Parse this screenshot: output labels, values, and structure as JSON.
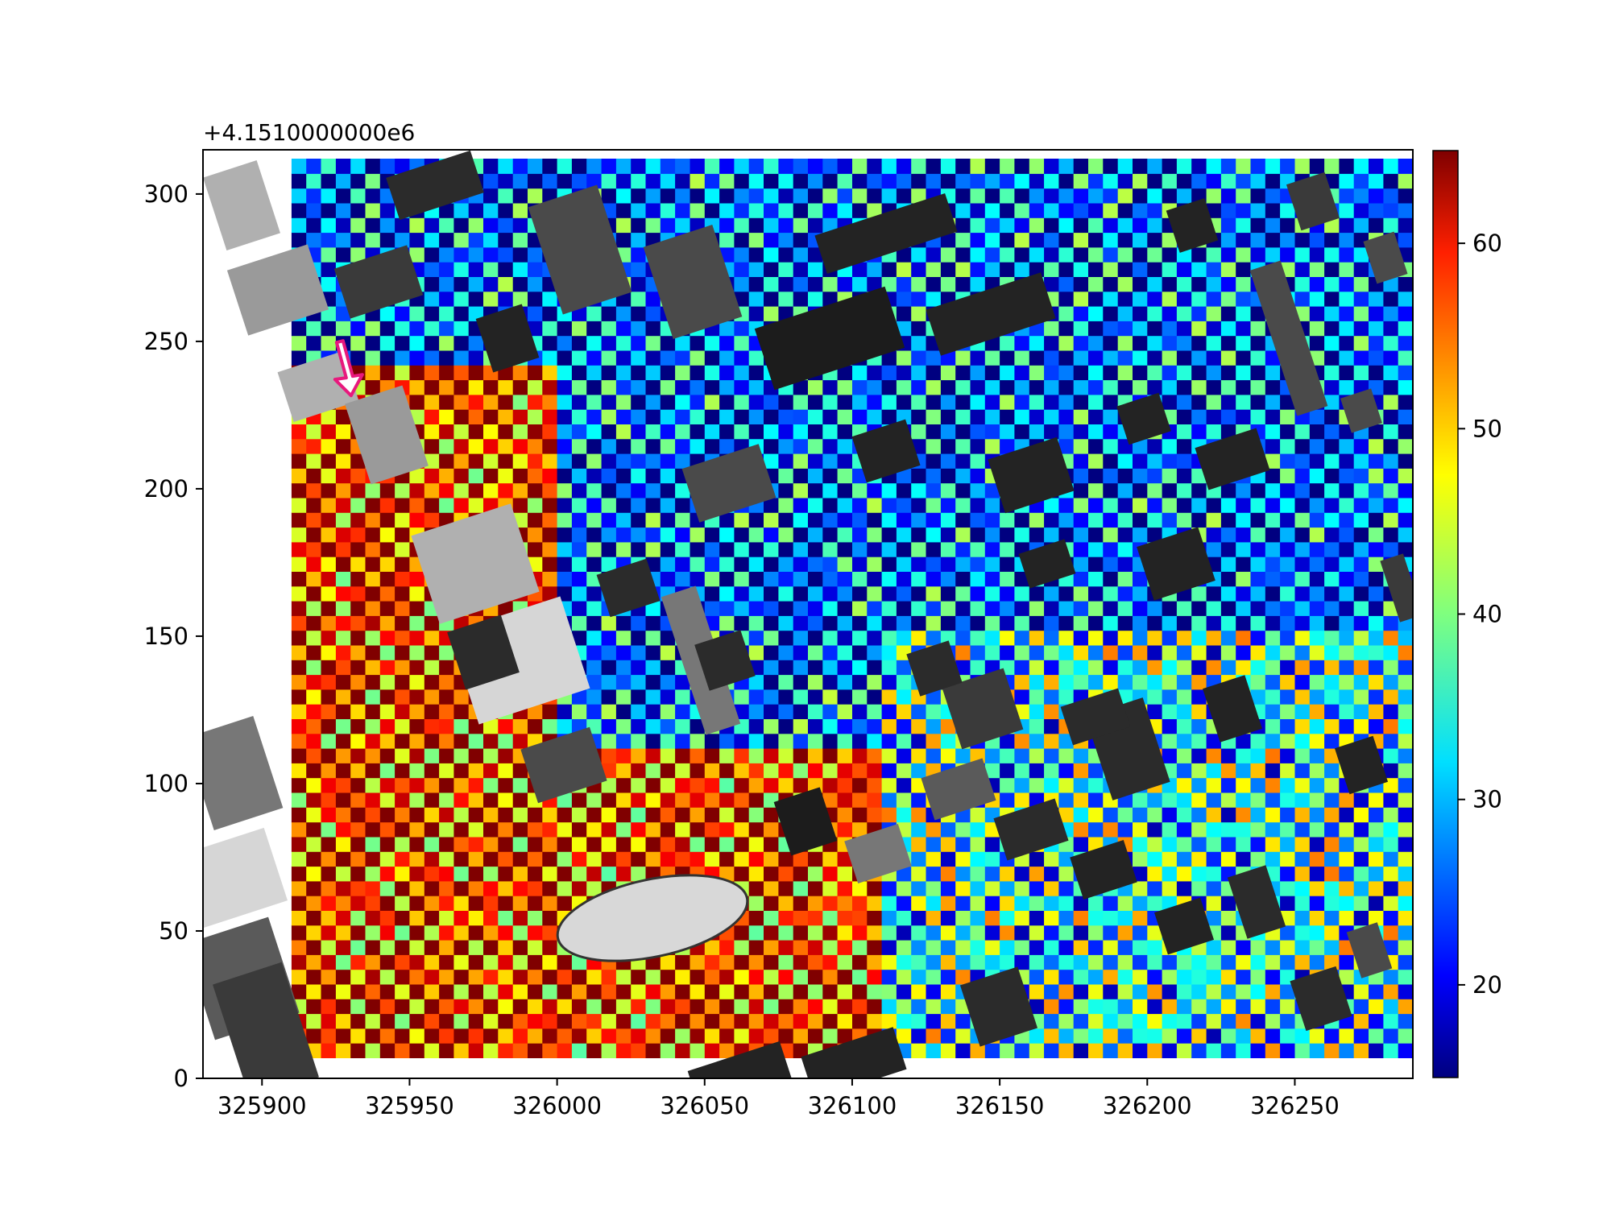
{
  "chart_data": {
    "type": "heatmap",
    "title": "",
    "xlabel": "",
    "ylabel": "",
    "offset_label": "+4.1510000000e6",
    "xlim": [
      325880,
      326290
    ],
    "ylim": [
      0,
      315
    ],
    "x_ticks": [
      325900,
      325950,
      326000,
      326050,
      326100,
      326150,
      326200,
      326250
    ],
    "y_ticks": [
      0,
      50,
      100,
      150,
      200,
      250,
      300
    ],
    "colorbar": {
      "colormap": "jet",
      "range": [
        15,
        65
      ],
      "ticks": [
        20,
        30,
        40,
        50,
        60
      ]
    },
    "grid_extent": {
      "x": [
        325910,
        326290
      ],
      "y": [
        7,
        309
      ]
    },
    "regions": [
      {
        "name": "west_high",
        "x": [
          325910,
          326000
        ],
        "y": [
          0,
          240
        ],
        "mean": 57
      },
      {
        "name": "south_central_high",
        "x": [
          326000,
          326110
        ],
        "y": [
          0,
          110
        ],
        "mean": 56
      },
      {
        "name": "north_low",
        "x": [
          325910,
          326290
        ],
        "y": [
          150,
          309
        ],
        "mean": 25
      },
      {
        "name": "east_mixed",
        "x": [
          326110,
          326290
        ],
        "y": [
          0,
          150
        ],
        "mean": 35
      }
    ],
    "marker": {
      "icon": "arrow-icon",
      "x": 325928,
      "y": 236,
      "direction": "down",
      "color": "#e8197d"
    }
  }
}
